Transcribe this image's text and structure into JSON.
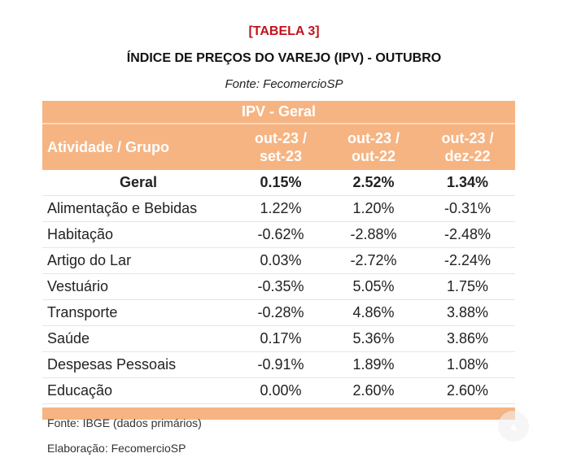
{
  "tag": "[TABELA 3]",
  "title": "ÍNDICE DE PREÇOS DO VAREJO (IPV) - OUTUBRO",
  "source_top": "Fonte: FecomercioSP",
  "table": {
    "group_header": "IPV - Geral",
    "col_label": "Atividade / Grupo",
    "periods": [
      {
        "line1": "out-23 /",
        "line2": "set-23"
      },
      {
        "line1": "out-23 /",
        "line2": "out-22"
      },
      {
        "line1": "out-23 /",
        "line2": "dez-22"
      }
    ],
    "total": {
      "label": "Geral",
      "values": [
        "0.15%",
        "2.52%",
        "1.34%"
      ]
    },
    "rows": [
      {
        "label": "Alimentação e Bebidas",
        "values": [
          "1.22%",
          "1.20%",
          "-0.31%"
        ]
      },
      {
        "label": "Habitação",
        "values": [
          "-0.62%",
          "-2.88%",
          "-2.48%"
        ]
      },
      {
        "label": "Artigo do Lar",
        "values": [
          "0.03%",
          "-2.72%",
          "-2.24%"
        ]
      },
      {
        "label": "Vestuário",
        "values": [
          "-0.35%",
          "5.05%",
          "1.75%"
        ]
      },
      {
        "label": "Transporte",
        "values": [
          "-0.28%",
          "4.86%",
          "3.88%"
        ]
      },
      {
        "label": "Saúde",
        "values": [
          "0.17%",
          "5.36%",
          "3.86%"
        ]
      },
      {
        "label": "Despesas Pessoais",
        "values": [
          "-0.91%",
          "1.89%",
          "1.08%"
        ]
      },
      {
        "label": "Educação",
        "values": [
          "0.00%",
          "2.60%",
          "2.60%"
        ]
      }
    ]
  },
  "notes": {
    "source": "Fonte: IBGE (dados primários)",
    "credit": "Elaboração: FecomercioSP"
  },
  "scroll_icon": "chevron-up-icon"
}
